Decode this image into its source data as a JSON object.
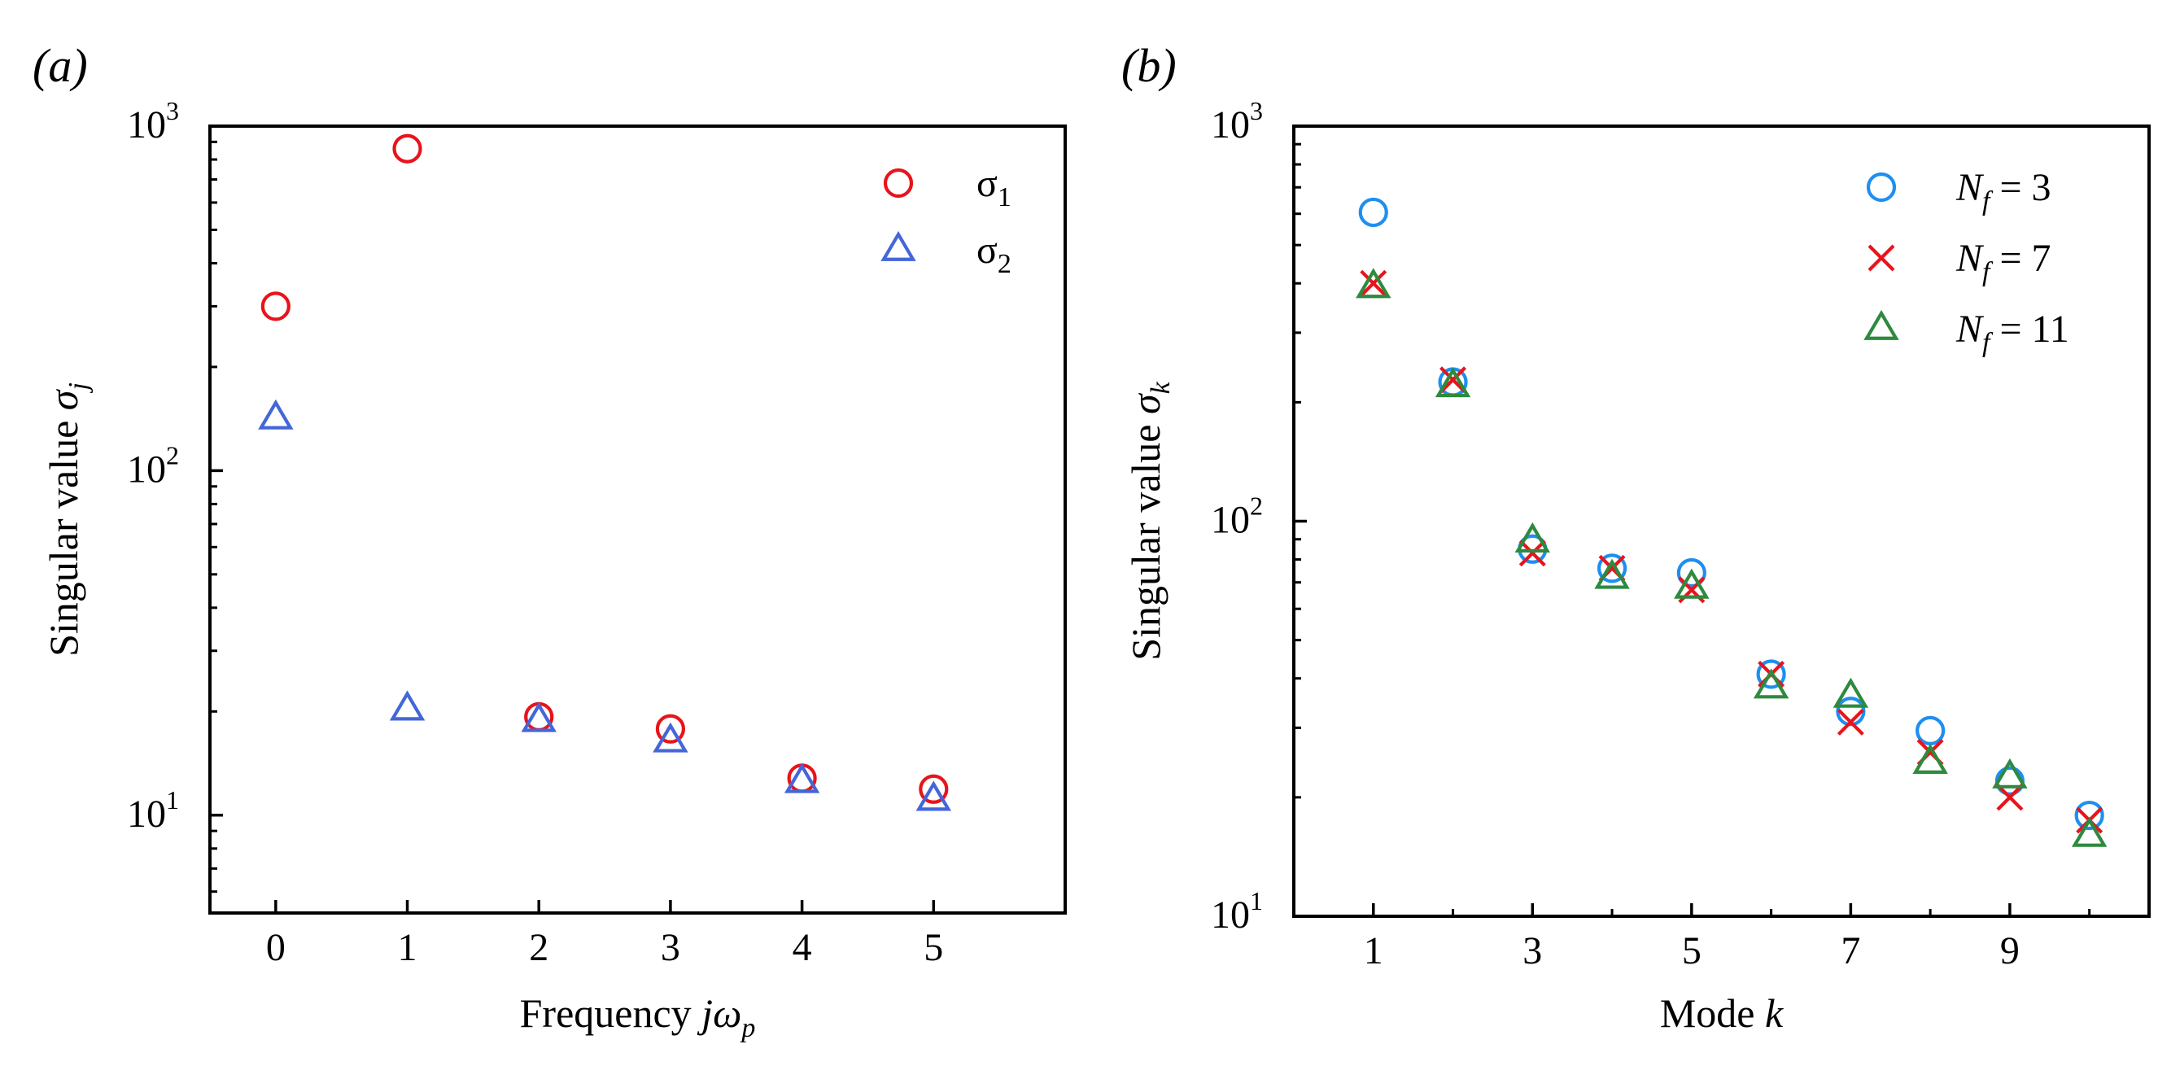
{
  "chart_data": [
    {
      "type": "scatter",
      "panel_label": "(a)",
      "xlabel_text": "Frequency ",
      "xlabel_math": "jω",
      "xlabel_sub": "p",
      "ylabel_text": "Singular value ",
      "ylabel_math": "σ",
      "ylabel_sub": "j",
      "yscale": "log",
      "xlim": [
        -0.5,
        6.0
      ],
      "ylim": [
        5.2,
        1000
      ],
      "xticks": [
        0,
        1,
        2,
        3,
        4,
        5
      ],
      "xtick_labels": [
        "0",
        "1",
        "2",
        "3",
        "4",
        "5"
      ],
      "yticks": [
        {
          "value": 10,
          "base": "10",
          "exp": "1"
        },
        {
          "value": 100,
          "base": "10",
          "exp": "2"
        },
        {
          "value": 1000,
          "base": "10",
          "exp": "3"
        }
      ],
      "legend_position": "top-right",
      "series": [
        {
          "name": "σ",
          "sub": "1",
          "marker": "circle",
          "color": "#e8141b",
          "x": [
            0,
            1,
            2,
            3,
            4,
            5
          ],
          "y": [
            300,
            860,
            19.3,
            17.8,
            12.8,
            11.9
          ]
        },
        {
          "name": "σ",
          "sub": "2",
          "marker": "triangle",
          "color": "#4466d8",
          "x": [
            0,
            1,
            2,
            3,
            4,
            5
          ],
          "y": [
            142,
            20.3,
            18.8,
            16.4,
            12.5,
            11.1
          ]
        }
      ]
    },
    {
      "type": "scatter",
      "panel_label": "(b)",
      "xlabel_text": "Mode ",
      "xlabel_math": "k",
      "xlabel_sub": "",
      "ylabel_text": "Singular value ",
      "ylabel_math": "σ",
      "ylabel_sub": "k",
      "yscale": "log",
      "xlim": [
        0.0,
        10.75
      ],
      "ylim": [
        10,
        1000
      ],
      "xticks": [
        1,
        3,
        5,
        7,
        9
      ],
      "xtick_labels": [
        "1",
        "3",
        "5",
        "7",
        "9"
      ],
      "xminor_ticks": [
        2,
        4,
        6,
        8,
        10
      ],
      "yticks": [
        {
          "value": 10,
          "base": "10",
          "exp": "1"
        },
        {
          "value": 100,
          "base": "10",
          "exp": "2"
        },
        {
          "value": 1000,
          "base": "10",
          "exp": "3"
        }
      ],
      "legend_position": "top-right",
      "series": [
        {
          "name": "N",
          "sub": "f",
          "suffix": " = 3",
          "marker": "circle",
          "color": "#1e8ff0",
          "x": [
            1,
            2,
            3,
            4,
            5,
            6,
            7,
            8,
            9,
            10
          ],
          "y": [
            605,
            225,
            85,
            76,
            74,
            41,
            33,
            29.5,
            22,
            18
          ]
        },
        {
          "name": "N",
          "sub": "f",
          "suffix": " = 7",
          "marker": "x",
          "color": "#e8141b",
          "x": [
            1,
            2,
            3,
            4,
            5,
            6,
            7,
            8,
            9,
            10
          ],
          "y": [
            400,
            228,
            83,
            76,
            67,
            41,
            31,
            26,
            20,
            17.5
          ]
        },
        {
          "name": "N",
          "sub": "f",
          "suffix": " = 11",
          "marker": "triangle",
          "color": "#2e8a3e",
          "x": [
            1,
            2,
            3,
            4,
            5,
            6,
            7,
            8,
            9,
            10
          ],
          "y": [
            392,
            220,
            89,
            72,
            68,
            38,
            36,
            24.5,
            22.5,
            16
          ]
        }
      ]
    }
  ]
}
